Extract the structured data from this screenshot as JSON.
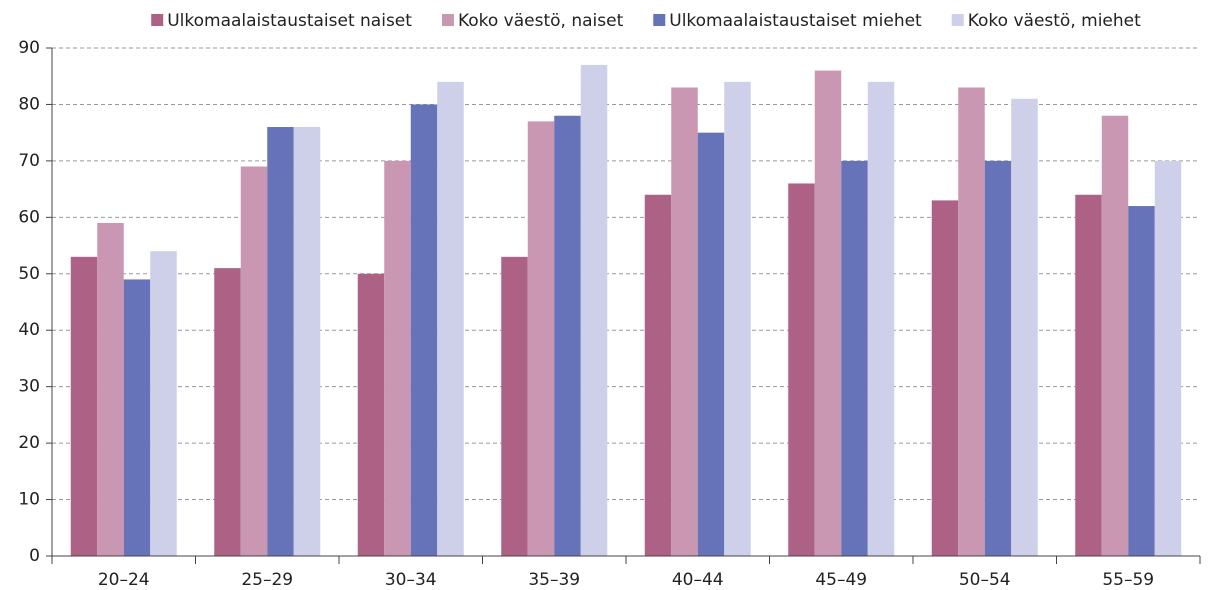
{
  "chart_data": {
    "type": "bar",
    "categories": [
      "20–24",
      "25–29",
      "30–34",
      "35–39",
      "40–44",
      "45–49",
      "50–54",
      "55–59"
    ],
    "series": [
      {
        "name": "Ulkomaalaistaustaiset naiset",
        "color": "#ad6285",
        "values": [
          53,
          51,
          50,
          53,
          64,
          66,
          63,
          64
        ]
      },
      {
        "name": "Koko väestö, naiset",
        "color": "#c997b1",
        "values": [
          59,
          69,
          70,
          77,
          83,
          86,
          83,
          78
        ]
      },
      {
        "name": "Ulkomaalaistaustaiset miehet",
        "color": "#6673b8",
        "values": [
          49,
          76,
          80,
          78,
          75,
          70,
          70,
          62
        ]
      },
      {
        "name": "Koko väestö, miehet",
        "color": "#cdd0e8",
        "values": [
          54,
          76,
          84,
          87,
          84,
          84,
          81,
          70
        ]
      }
    ],
    "ylim": [
      0,
      90
    ],
    "yticks": [
      0,
      10,
      20,
      30,
      40,
      50,
      60,
      70,
      80,
      90
    ],
    "grid": true,
    "legend": "top"
  }
}
